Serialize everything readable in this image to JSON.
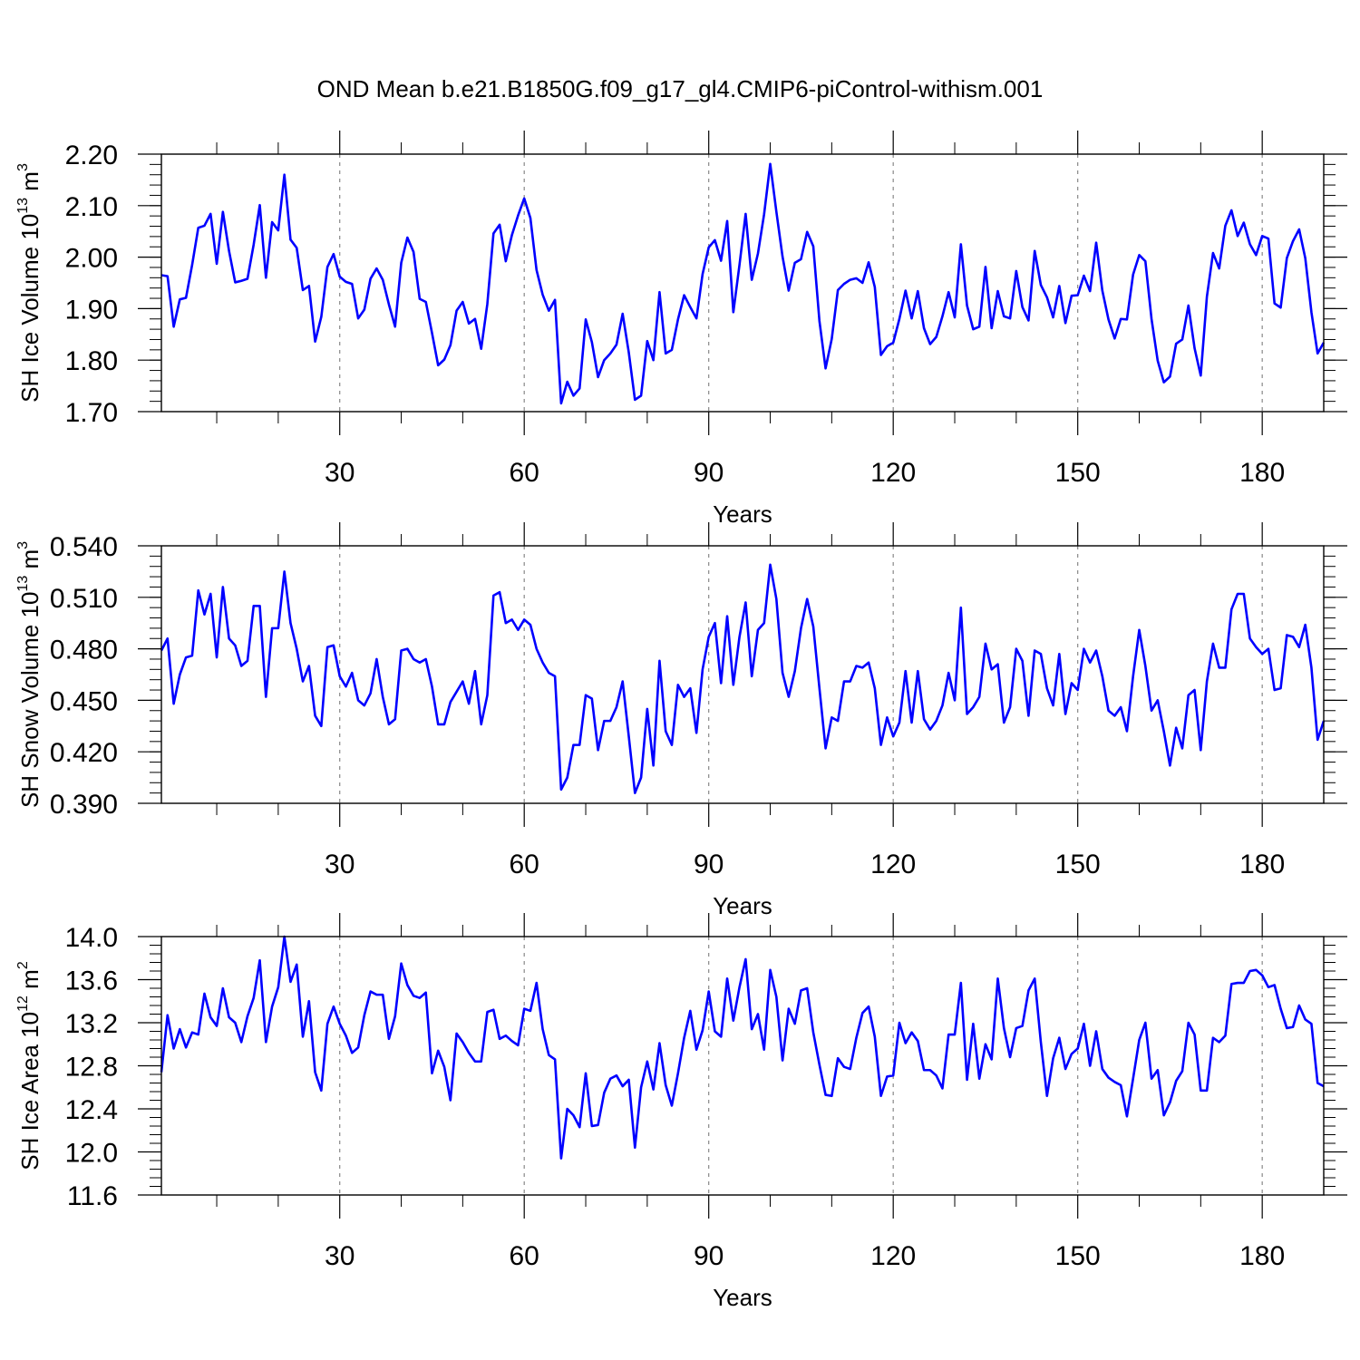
{
  "title": "OND Mean b.e21.B1850G.f09_g17_gl4.CMIP6-piControl-withism.001",
  "line_color": "#0000ff",
  "grid_color": "#888888",
  "chart_data": [
    {
      "type": "line",
      "id": "ice-volume",
      "ylabel_main": "SH Ice Volume 10",
      "ylabel_exp": "13",
      "ylabel_unit": " m",
      "ylabel_unit_exp": "3",
      "xlabel": "Years",
      "xlim": [
        1,
        190
      ],
      "ylim": [
        1.7,
        2.2
      ],
      "xticks": [
        30,
        60,
        90,
        120,
        150,
        180
      ],
      "xtick_labels": [
        "30",
        "60",
        "90",
        "120",
        "150",
        "180"
      ],
      "yticks": [
        1.7,
        1.8,
        1.9,
        2.0,
        2.1,
        2.2
      ],
      "ytick_labels": [
        "1.70",
        "1.80",
        "1.90",
        "2.00",
        "2.10",
        "2.20"
      ],
      "yminor": 0.02,
      "grid": "vertical dashed at major x ticks",
      "x_start": 1,
      "values": [
        1.965,
        1.963,
        1.865,
        1.918,
        1.921,
        1.985,
        2.057,
        2.061,
        2.084,
        1.987,
        2.088,
        2.012,
        1.951,
        1.954,
        1.958,
        2.024,
        2.101,
        1.96,
        2.068,
        2.052,
        2.16,
        2.034,
        2.018,
        1.936,
        1.944,
        1.836,
        1.884,
        1.981,
        2.006,
        1.962,
        1.952,
        1.948,
        1.881,
        1.898,
        1.958,
        1.978,
        1.956,
        1.908,
        1.865,
        1.989,
        2.038,
        2.01,
        1.919,
        1.913,
        1.853,
        1.79,
        1.801,
        1.829,
        1.896,
        1.913,
        1.871,
        1.88,
        1.822,
        1.909,
        2.046,
        2.063,
        1.992,
        2.043,
        2.081,
        2.114,
        2.076,
        1.975,
        1.927,
        1.896,
        1.917,
        1.716,
        1.758,
        1.731,
        1.745,
        1.879,
        1.835,
        1.767,
        1.8,
        1.813,
        1.83,
        1.89,
        1.815,
        1.723,
        1.731,
        1.837,
        1.8,
        1.932,
        1.813,
        1.82,
        1.879,
        1.926,
        1.903,
        1.881,
        1.967,
        2.019,
        2.033,
        1.993,
        2.07,
        1.893,
        1.985,
        2.084,
        1.956,
        2.007,
        2.083,
        2.181,
        2.088,
        2.001,
        1.935,
        1.989,
        1.996,
        2.049,
        2.021,
        1.876,
        1.784,
        1.841,
        1.936,
        1.948,
        1.956,
        1.959,
        1.95,
        1.99,
        1.942,
        1.81,
        1.827,
        1.834,
        1.88,
        1.935,
        1.881,
        1.934,
        1.862,
        1.831,
        1.845,
        1.885,
        1.932,
        1.883,
        2.025,
        1.906,
        1.86,
        1.865,
        1.981,
        1.862,
        1.934,
        1.885,
        1.881,
        1.973,
        1.903,
        1.877,
        2.012,
        1.946,
        1.922,
        1.883,
        1.944,
        1.872,
        1.925,
        1.926,
        1.964,
        1.934,
        2.028,
        1.935,
        1.879,
        1.842,
        1.88,
        1.879,
        1.966,
        2.004,
        1.992,
        1.88,
        1.799,
        1.757,
        1.768,
        1.832,
        1.84,
        1.906,
        1.823,
        1.77,
        1.923,
        2.008,
        1.978,
        2.061,
        2.091,
        2.041,
        2.067,
        2.025,
        2.004,
        2.041,
        2.036,
        1.91,
        1.902,
        1.998,
        2.031,
        2.054,
        1.998,
        1.893,
        1.813,
        1.834
      ]
    },
    {
      "type": "line",
      "id": "snow-volume",
      "ylabel_main": "SH Snow Volume 10",
      "ylabel_exp": "13",
      "ylabel_unit": " m",
      "ylabel_unit_exp": "3",
      "xlabel": "Years",
      "xlim": [
        1,
        190
      ],
      "ylim": [
        0.39,
        0.54
      ],
      "xticks": [
        30,
        60,
        90,
        120,
        150,
        180
      ],
      "xtick_labels": [
        "30",
        "60",
        "90",
        "120",
        "150",
        "180"
      ],
      "yticks": [
        0.39,
        0.42,
        0.45,
        0.48,
        0.51,
        0.54
      ],
      "ytick_labels": [
        "0.390",
        "0.420",
        "0.450",
        "0.480",
        "0.510",
        "0.540"
      ],
      "yminor": 0.006,
      "grid": "vertical dashed at major x ticks",
      "x_start": 1,
      "values": [
        0.479,
        0.486,
        0.448,
        0.465,
        0.475,
        0.476,
        0.514,
        0.5,
        0.512,
        0.475,
        0.516,
        0.486,
        0.482,
        0.47,
        0.473,
        0.505,
        0.505,
        0.452,
        0.492,
        0.492,
        0.525,
        0.495,
        0.48,
        0.461,
        0.47,
        0.441,
        0.435,
        0.481,
        0.482,
        0.464,
        0.458,
        0.466,
        0.45,
        0.447,
        0.454,
        0.474,
        0.452,
        0.436,
        0.439,
        0.479,
        0.48,
        0.474,
        0.472,
        0.474,
        0.458,
        0.436,
        0.436,
        0.449,
        0.455,
        0.461,
        0.448,
        0.467,
        0.436,
        0.453,
        0.511,
        0.513,
        0.495,
        0.497,
        0.491,
        0.497,
        0.494,
        0.48,
        0.472,
        0.466,
        0.464,
        0.398,
        0.405,
        0.424,
        0.424,
        0.453,
        0.451,
        0.421,
        0.438,
        0.438,
        0.446,
        0.461,
        0.429,
        0.396,
        0.405,
        0.445,
        0.412,
        0.473,
        0.432,
        0.424,
        0.459,
        0.452,
        0.457,
        0.431,
        0.468,
        0.487,
        0.495,
        0.46,
        0.499,
        0.459,
        0.487,
        0.507,
        0.464,
        0.491,
        0.495,
        0.529,
        0.509,
        0.466,
        0.452,
        0.467,
        0.492,
        0.509,
        0.493,
        0.457,
        0.422,
        0.44,
        0.438,
        0.461,
        0.461,
        0.47,
        0.469,
        0.472,
        0.457,
        0.424,
        0.44,
        0.429,
        0.437,
        0.467,
        0.437,
        0.467,
        0.439,
        0.433,
        0.438,
        0.447,
        0.466,
        0.45,
        0.504,
        0.442,
        0.446,
        0.452,
        0.483,
        0.468,
        0.471,
        0.437,
        0.446,
        0.48,
        0.473,
        0.441,
        0.479,
        0.477,
        0.457,
        0.447,
        0.477,
        0.442,
        0.46,
        0.456,
        0.48,
        0.472,
        0.479,
        0.464,
        0.444,
        0.441,
        0.446,
        0.432,
        0.464,
        0.491,
        0.47,
        0.444,
        0.45,
        0.432,
        0.412,
        0.434,
        0.422,
        0.453,
        0.456,
        0.421,
        0.461,
        0.483,
        0.469,
        0.469,
        0.503,
        0.512,
        0.512,
        0.486,
        0.481,
        0.477,
        0.48,
        0.456,
        0.457,
        0.488,
        0.487,
        0.481,
        0.494,
        0.469,
        0.427,
        0.438
      ]
    },
    {
      "type": "line",
      "id": "ice-area",
      "ylabel_main": "SH Ice Area 10",
      "ylabel_exp": "12",
      "ylabel_unit": " m",
      "ylabel_unit_exp": "2",
      "xlabel": "Years",
      "xlim": [
        1,
        190
      ],
      "ylim": [
        11.6,
        14.0
      ],
      "xticks": [
        30,
        60,
        90,
        120,
        150,
        180
      ],
      "xtick_labels": [
        "30",
        "60",
        "90",
        "120",
        "150",
        "180"
      ],
      "yticks": [
        11.6,
        12.0,
        12.4,
        12.8,
        13.2,
        13.6,
        14.0
      ],
      "ytick_labels": [
        "11.6",
        "12.0",
        "12.4",
        "12.8",
        "13.2",
        "13.6",
        "14.0"
      ],
      "yminor": 0.08,
      "grid": "vertical dashed at major x ticks",
      "x_start": 1,
      "values": [
        12.74,
        13.27,
        12.96,
        13.14,
        12.97,
        13.11,
        13.09,
        13.47,
        13.25,
        13.17,
        13.52,
        13.25,
        13.2,
        13.02,
        13.26,
        13.43,
        13.78,
        13.02,
        13.35,
        13.53,
        14.0,
        13.58,
        13.74,
        13.07,
        13.4,
        12.74,
        12.57,
        13.19,
        13.35,
        13.19,
        13.08,
        12.92,
        12.97,
        13.27,
        13.49,
        13.46,
        13.46,
        13.05,
        13.26,
        13.75,
        13.55,
        13.45,
        13.43,
        13.48,
        12.73,
        12.94,
        12.79,
        12.48,
        13.1,
        13.02,
        12.92,
        12.84,
        12.84,
        13.3,
        13.32,
        13.05,
        13.08,
        13.03,
        12.99,
        13.33,
        13.31,
        13.57,
        13.14,
        12.9,
        12.86,
        11.94,
        12.4,
        12.34,
        12.23,
        12.73,
        12.24,
        12.25,
        12.55,
        12.68,
        12.71,
        12.61,
        12.67,
        12.04,
        12.6,
        12.84,
        12.58,
        13.01,
        12.62,
        12.43,
        12.73,
        13.06,
        13.31,
        12.95,
        13.13,
        13.49,
        13.12,
        13.07,
        13.61,
        13.22,
        13.53,
        13.79,
        13.14,
        13.28,
        12.95,
        13.69,
        13.44,
        12.85,
        13.33,
        13.19,
        13.5,
        13.52,
        13.11,
        12.81,
        12.53,
        12.52,
        12.87,
        12.79,
        12.77,
        13.06,
        13.29,
        13.35,
        13.07,
        12.52,
        12.7,
        12.71,
        13.2,
        13.01,
        13.11,
        13.03,
        12.76,
        12.76,
        12.71,
        12.59,
        13.09,
        13.09,
        13.57,
        12.67,
        13.19,
        12.68,
        13.0,
        12.86,
        13.61,
        13.15,
        12.88,
        13.15,
        13.17,
        13.5,
        13.61,
        13.02,
        12.52,
        12.87,
        13.06,
        12.77,
        12.91,
        12.96,
        13.19,
        12.8,
        13.12,
        12.77,
        12.69,
        12.65,
        12.62,
        12.33,
        12.68,
        13.04,
        13.2,
        12.68,
        12.76,
        12.34,
        12.46,
        12.66,
        12.75,
        13.2,
        13.09,
        12.57,
        12.57,
        13.06,
        13.02,
        13.08,
        13.56,
        13.57,
        13.57,
        13.68,
        13.69,
        13.64,
        13.53,
        13.55,
        13.33,
        13.15,
        13.16,
        13.36,
        13.23,
        13.19,
        12.64,
        12.61
      ]
    }
  ]
}
